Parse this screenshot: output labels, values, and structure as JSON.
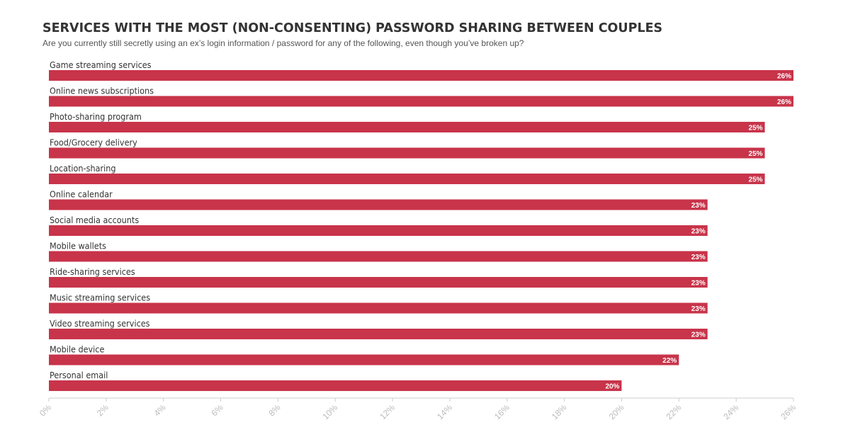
{
  "chart_data": {
    "type": "bar",
    "orientation": "horizontal",
    "title": "SERVICES WITH THE MOST (NON-CONSENTING) PASSWORD SHARING BETWEEN COUPLES",
    "subtitle": "Are you currently still secretly using an ex’s login information / password for any of the following, even though you’ve broken up?",
    "categories": [
      "Game streaming services",
      "Online news subscriptions",
      "Photo-sharing program",
      "Food/Grocery delivery",
      "Location-sharing",
      "Online calendar",
      "Social media accounts",
      "Mobile wallets",
      "Ride-sharing services",
      "Music streaming services",
      "Video streaming services",
      "Mobile device",
      "Personal email"
    ],
    "values": [
      26,
      26,
      25,
      25,
      25,
      23,
      23,
      23,
      23,
      23,
      23,
      22,
      20
    ],
    "value_labels": [
      "26%",
      "26%",
      "25%",
      "25%",
      "25%",
      "23%",
      "23%",
      "23%",
      "23%",
      "23%",
      "23%",
      "22%",
      "20%"
    ],
    "xlim": [
      0,
      26
    ],
    "xticks": [
      0,
      2,
      4,
      6,
      8,
      10,
      12,
      14,
      16,
      18,
      20,
      22,
      24,
      26
    ],
    "xtick_labels": [
      "0%",
      "2%",
      "4%",
      "6%",
      "8%",
      "10%",
      "12%",
      "14%",
      "16%",
      "18%",
      "20%",
      "22%",
      "24%",
      "26%"
    ],
    "bar_color": "#c8344a",
    "grid": false,
    "legend": "none"
  }
}
